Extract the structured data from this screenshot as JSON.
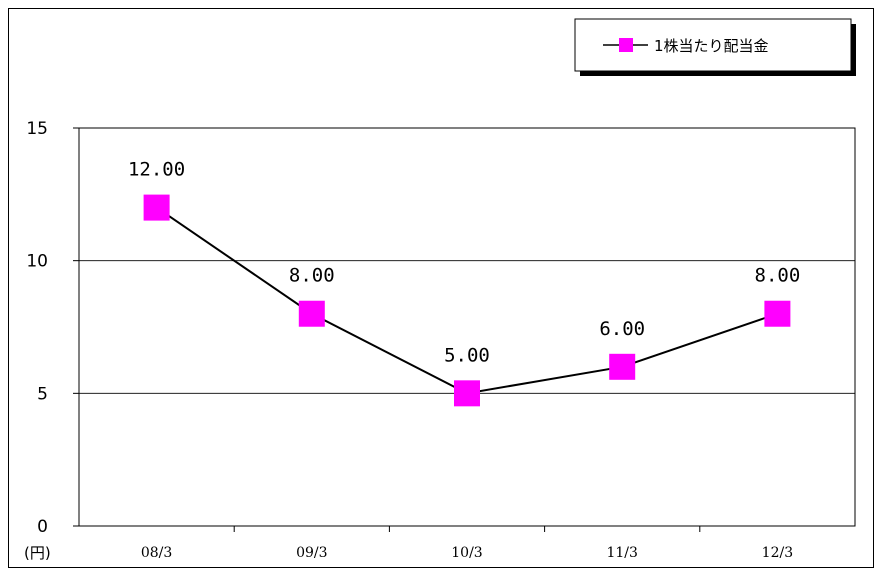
{
  "chart_data": {
    "type": "line",
    "title": "",
    "xlabel": "",
    "ylabel": "",
    "y_unit_label": "(円)",
    "categories": [
      "08/3",
      "09/3",
      "10/3",
      "11/3",
      "12/3"
    ],
    "series": [
      {
        "name": "1株当たり配当金",
        "values": [
          12.0,
          8.0,
          5.0,
          6.0,
          8.0
        ],
        "labels": [
          "12.00",
          "8.00",
          "5.00",
          "6.00",
          "8.00"
        ],
        "color": "#ff00ff",
        "marker": "square",
        "line_color": "#000000"
      }
    ],
    "ylim": [
      0,
      15
    ],
    "yticks": [
      0,
      5,
      10,
      15
    ],
    "ytick_labels": [
      "0",
      "5",
      "10",
      "15"
    ],
    "grid": "horizontal",
    "legend_position": "top-right"
  }
}
